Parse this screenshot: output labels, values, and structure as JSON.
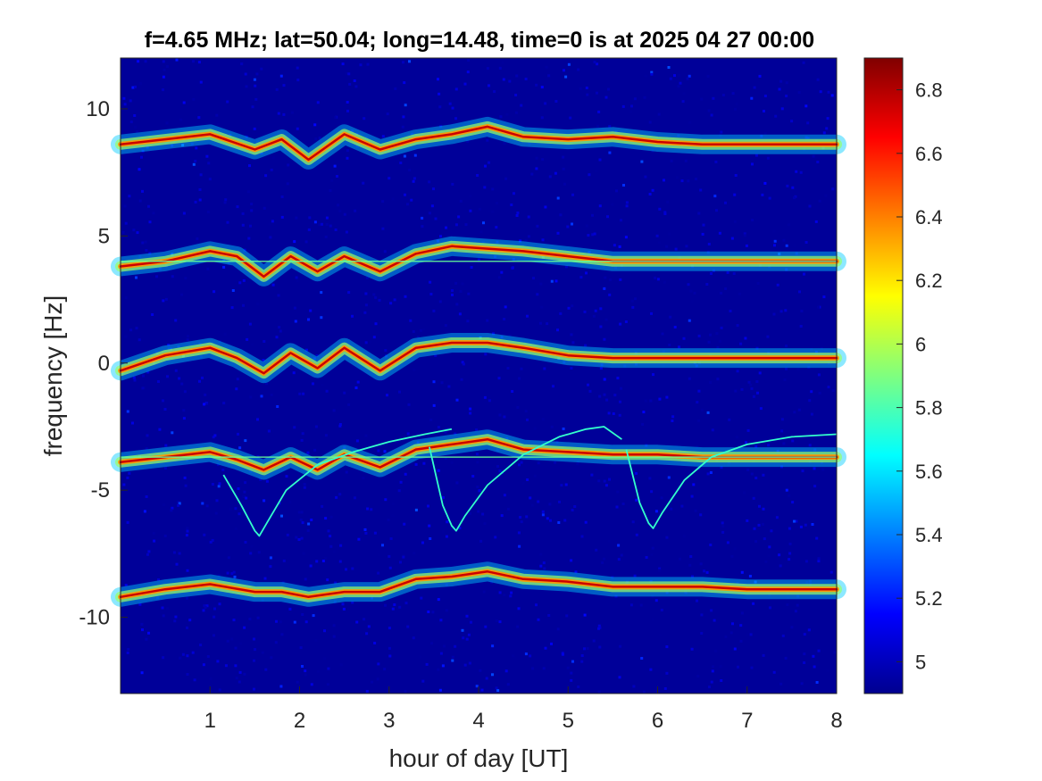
{
  "chart_data": {
    "type": "heatmap",
    "title": "f=4.65 MHz;  lat=50.04; long=14.48, time=0 is at 2025 04 27 00:00",
    "xlabel": "hour of day [UT]",
    "ylabel": "frequency [Hz]",
    "xlim": [
      0,
      8
    ],
    "ylim": [
      -13,
      12
    ],
    "x_ticks": [
      1,
      2,
      3,
      4,
      5,
      6,
      7,
      8
    ],
    "y_ticks": [
      -10,
      -5,
      0,
      5,
      10
    ],
    "colorbar": {
      "colormap": "jet",
      "range": [
        4.9,
        6.9
      ],
      "ticks": [
        5,
        5.2,
        5.4,
        5.6,
        5.8,
        6,
        6.2,
        6.4,
        6.6,
        6.8
      ]
    },
    "background_level": 4.95,
    "series": [
      {
        "x": [
          0,
          0.5,
          1.0,
          1.5,
          1.8,
          2.1,
          2.5,
          2.9,
          3.3,
          3.7,
          4.1,
          4.5,
          5.0,
          5.5,
          6.0,
          6.5,
          7.0,
          7.5,
          8.0
        ],
        "y": [
          8.6,
          8.8,
          9.0,
          8.4,
          8.8,
          8.0,
          9.0,
          8.4,
          8.8,
          9.0,
          9.3,
          8.9,
          8.8,
          8.9,
          8.7,
          8.6,
          8.6,
          8.6,
          8.6
        ]
      },
      {
        "x": [
          0,
          0.5,
          1.0,
          1.3,
          1.6,
          1.9,
          2.2,
          2.5,
          2.9,
          3.3,
          3.7,
          4.1,
          4.5,
          5.0,
          5.5,
          6.0,
          6.5,
          7.0,
          7.5,
          8.0
        ],
        "y": [
          3.8,
          4.0,
          4.4,
          4.2,
          3.4,
          4.2,
          3.6,
          4.2,
          3.6,
          4.3,
          4.6,
          4.5,
          4.4,
          4.2,
          4.0,
          4.0,
          4.0,
          4.0,
          4.0,
          4.0
        ]
      },
      {
        "x": [
          0,
          0.5,
          1.0,
          1.3,
          1.6,
          1.9,
          2.2,
          2.5,
          2.9,
          3.3,
          3.7,
          4.1,
          4.5,
          5.0,
          5.5,
          6.0,
          6.5,
          7.0,
          7.5,
          8.0
        ],
        "y": [
          -0.3,
          0.3,
          0.6,
          0.2,
          -0.4,
          0.4,
          -0.2,
          0.6,
          -0.3,
          0.6,
          0.8,
          0.8,
          0.6,
          0.3,
          0.2,
          0.2,
          0.2,
          0.2,
          0.2,
          0.2
        ]
      },
      {
        "x": [
          0,
          0.5,
          1.0,
          1.3,
          1.6,
          1.9,
          2.2,
          2.5,
          2.9,
          3.3,
          3.7,
          4.1,
          4.5,
          5.0,
          5.5,
          6.0,
          6.5,
          7.0,
          7.5,
          8.0
        ],
        "y": [
          -3.9,
          -3.7,
          -3.5,
          -3.8,
          -4.2,
          -3.7,
          -4.2,
          -3.6,
          -4.1,
          -3.4,
          -3.2,
          -3.0,
          -3.4,
          -3.5,
          -3.6,
          -3.6,
          -3.7,
          -3.7,
          -3.7,
          -3.7
        ]
      },
      {
        "x": [
          0,
          0.5,
          1.0,
          1.5,
          1.8,
          2.1,
          2.5,
          2.9,
          3.3,
          3.7,
          4.1,
          4.5,
          5.0,
          5.5,
          6.0,
          6.5,
          7.0,
          7.5,
          8.0
        ],
        "y": [
          -9.2,
          -8.9,
          -8.7,
          -9.0,
          -9.0,
          -9.2,
          -9.0,
          -9.0,
          -8.5,
          -8.4,
          -8.2,
          -8.5,
          -8.6,
          -8.8,
          -8.8,
          -8.8,
          -8.9,
          -8.9,
          -8.9
        ]
      }
    ],
    "constant_lines": [
      4.0,
      -3.7
    ],
    "traces": [
      {
        "x": [
          1.15,
          1.35,
          1.5,
          1.55,
          1.65,
          1.85,
          2.2,
          2.6,
          3.0,
          3.4,
          3.7
        ],
        "y": [
          -4.4,
          -5.6,
          -6.6,
          -6.8,
          -6.2,
          -5.0,
          -4.0,
          -3.5,
          -3.1,
          -2.8,
          -2.6
        ]
      },
      {
        "x": [
          3.45,
          3.6,
          3.7,
          3.75,
          3.85,
          4.1,
          4.5,
          4.9,
          5.2,
          5.4,
          5.6
        ],
        "y": [
          -3.3,
          -5.6,
          -6.4,
          -6.6,
          -6.0,
          -4.8,
          -3.6,
          -2.9,
          -2.6,
          -2.5,
          -3.0
        ]
      },
      {
        "x": [
          5.65,
          5.8,
          5.9,
          5.95,
          6.05,
          6.3,
          6.6,
          7.0,
          7.5,
          8.0
        ],
        "y": [
          -3.4,
          -5.5,
          -6.3,
          -6.5,
          -5.9,
          -4.6,
          -3.7,
          -3.2,
          -2.9,
          -2.8
        ]
      }
    ]
  }
}
